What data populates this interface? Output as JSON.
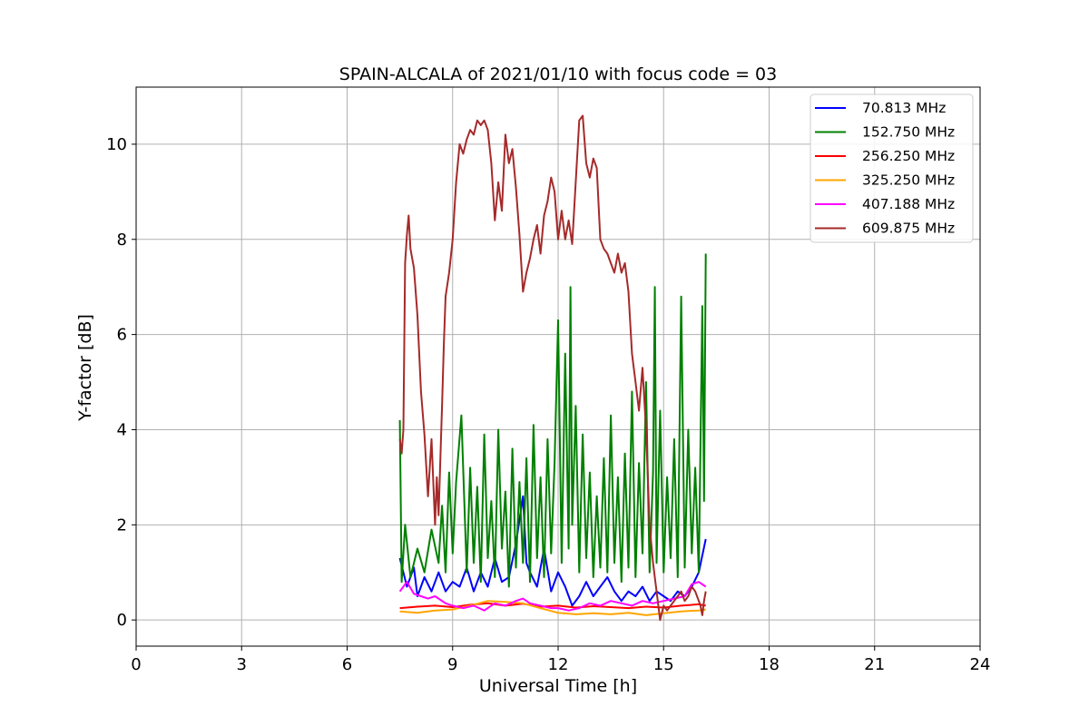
{
  "chart_data": {
    "type": "line",
    "title": "SPAIN-ALCALA of 2021/01/10 with focus code = 03",
    "xlabel": "Universal Time [h]",
    "ylabel": "Y-factor [dB]",
    "xlim": [
      0,
      24
    ],
    "ylim": [
      -0.55,
      11.2
    ],
    "xticks": [
      0,
      3,
      6,
      9,
      12,
      15,
      18,
      21,
      24
    ],
    "yticks": [
      0,
      2,
      4,
      6,
      8,
      10
    ],
    "grid": true,
    "legend_position": "top-right",
    "series": [
      {
        "name": " 70.813 MHz",
        "color": "#0000ff",
        "x": [
          7.5,
          7.7,
          7.9,
          8.0,
          8.2,
          8.4,
          8.6,
          8.8,
          9.0,
          9.2,
          9.4,
          9.6,
          9.8,
          10.0,
          10.2,
          10.4,
          10.6,
          10.8,
          11.0,
          11.1,
          11.2,
          11.4,
          11.6,
          11.8,
          12.0,
          12.2,
          12.4,
          12.6,
          12.8,
          13.0,
          13.2,
          13.4,
          13.6,
          13.8,
          14.0,
          14.2,
          14.4,
          14.6,
          14.8,
          15.0,
          15.2,
          15.4,
          15.6,
          15.8,
          16.0,
          16.2
        ],
        "y": [
          1.3,
          0.7,
          1.1,
          0.5,
          0.9,
          0.6,
          1.0,
          0.6,
          0.8,
          0.7,
          1.1,
          0.6,
          1.0,
          0.7,
          1.3,
          0.8,
          0.9,
          1.6,
          2.6,
          1.2,
          1.0,
          0.7,
          1.5,
          0.6,
          1.0,
          0.7,
          0.3,
          0.5,
          0.8,
          0.5,
          0.7,
          0.9,
          0.6,
          0.4,
          0.6,
          0.5,
          0.7,
          0.4,
          0.6,
          0.5,
          0.4,
          0.6,
          0.5,
          0.7,
          1.0,
          1.7
        ]
      },
      {
        "name": "152.750 MHz",
        "color": "#008000",
        "x": [
          7.5,
          7.55,
          7.65,
          7.8,
          8.0,
          8.2,
          8.4,
          8.6,
          8.7,
          8.8,
          8.9,
          9.0,
          9.1,
          9.25,
          9.4,
          9.5,
          9.6,
          9.7,
          9.8,
          9.9,
          10.0,
          10.1,
          10.2,
          10.3,
          10.4,
          10.5,
          10.6,
          10.7,
          10.8,
          10.9,
          11.0,
          11.1,
          11.2,
          11.3,
          11.4,
          11.5,
          11.6,
          11.7,
          11.8,
          11.9,
          12.0,
          12.1,
          12.2,
          12.3,
          12.35,
          12.4,
          12.5,
          12.6,
          12.7,
          12.8,
          12.9,
          13.0,
          13.1,
          13.2,
          13.3,
          13.4,
          13.5,
          13.6,
          13.7,
          13.8,
          13.9,
          14.0,
          14.1,
          14.2,
          14.3,
          14.4,
          14.5,
          14.6,
          14.7,
          14.75,
          14.8,
          14.9,
          15.0,
          15.1,
          15.2,
          15.3,
          15.4,
          15.5,
          15.6,
          15.7,
          15.8,
          15.9,
          16.0,
          16.1,
          16.15,
          16.2
        ],
        "y": [
          4.2,
          0.8,
          2.0,
          0.9,
          1.5,
          1.0,
          1.9,
          1.2,
          2.4,
          1.0,
          3.1,
          1.4,
          2.9,
          4.3,
          1.0,
          3.2,
          1.2,
          2.8,
          0.8,
          3.9,
          1.3,
          2.5,
          0.9,
          4.0,
          1.5,
          2.7,
          0.7,
          3.6,
          1.1,
          2.9,
          1.2,
          3.4,
          0.8,
          4.1,
          1.3,
          3.0,
          0.9,
          3.8,
          1.4,
          3.3,
          6.3,
          1.2,
          5.6,
          1.5,
          7.0,
          2.0,
          4.5,
          1.0,
          3.9,
          1.3,
          3.1,
          0.9,
          2.6,
          1.1,
          3.4,
          1.0,
          4.3,
          1.2,
          3.0,
          0.8,
          3.5,
          1.1,
          4.8,
          0.9,
          3.3,
          1.4,
          5.0,
          1.0,
          3.1,
          7.0,
          1.2,
          4.4,
          1.0,
          3.0,
          1.3,
          3.8,
          0.9,
          6.8,
          1.1,
          4.0,
          1.4,
          3.2,
          1.0,
          6.6,
          2.5,
          7.7
        ]
      },
      {
        "name": "256.250 MHz",
        "color": "#ff0000",
        "x": [
          7.5,
          8.0,
          8.5,
          9.0,
          9.5,
          10.0,
          10.5,
          11.0,
          11.5,
          12.0,
          12.5,
          13.0,
          13.5,
          14.0,
          14.5,
          15.0,
          15.5,
          16.0,
          16.2
        ],
        "y": [
          0.25,
          0.28,
          0.3,
          0.27,
          0.32,
          0.35,
          0.3,
          0.34,
          0.28,
          0.3,
          0.26,
          0.29,
          0.27,
          0.25,
          0.28,
          0.26,
          0.3,
          0.33,
          0.3
        ]
      },
      {
        "name": "325.250 MHz",
        "color": "#ffa500",
        "x": [
          7.5,
          8.0,
          8.5,
          9.0,
          9.5,
          10.0,
          10.5,
          11.0,
          11.5,
          12.0,
          12.5,
          13.0,
          13.5,
          14.0,
          14.5,
          15.0,
          15.5,
          16.0,
          16.2
        ],
        "y": [
          0.18,
          0.15,
          0.2,
          0.22,
          0.3,
          0.4,
          0.38,
          0.35,
          0.25,
          0.15,
          0.12,
          0.14,
          0.12,
          0.15,
          0.1,
          0.14,
          0.18,
          0.2,
          0.22
        ]
      },
      {
        "name": "407.188 MHz",
        "color": "#ff00ff",
        "x": [
          7.5,
          7.7,
          7.9,
          8.1,
          8.3,
          8.5,
          8.8,
          9.0,
          9.3,
          9.6,
          9.9,
          10.2,
          10.5,
          10.8,
          11.0,
          11.2,
          11.5,
          11.8,
          12.0,
          12.3,
          12.6,
          12.9,
          13.2,
          13.5,
          13.8,
          14.1,
          14.4,
          14.7,
          15.0,
          15.3,
          15.6,
          15.8,
          16.0,
          16.2
        ],
        "y": [
          0.6,
          0.8,
          0.55,
          0.5,
          0.45,
          0.5,
          0.35,
          0.3,
          0.25,
          0.3,
          0.2,
          0.35,
          0.3,
          0.4,
          0.45,
          0.35,
          0.3,
          0.25,
          0.25,
          0.2,
          0.25,
          0.35,
          0.3,
          0.4,
          0.35,
          0.3,
          0.4,
          0.35,
          0.4,
          0.45,
          0.5,
          0.75,
          0.8,
          0.7
        ]
      },
      {
        "name": "609.875 MHz",
        "color": "#a52a2a",
        "x": [
          7.5,
          7.55,
          7.6,
          7.65,
          7.7,
          7.75,
          7.8,
          7.9,
          8.0,
          8.1,
          8.2,
          8.3,
          8.4,
          8.5,
          8.55,
          8.6,
          8.7,
          8.75,
          8.8,
          8.9,
          9.0,
          9.1,
          9.2,
          9.3,
          9.4,
          9.5,
          9.6,
          9.7,
          9.8,
          9.9,
          10.0,
          10.1,
          10.2,
          10.3,
          10.4,
          10.5,
          10.6,
          10.7,
          10.8,
          10.9,
          11.0,
          11.1,
          11.2,
          11.3,
          11.4,
          11.5,
          11.6,
          11.7,
          11.8,
          11.9,
          12.0,
          12.1,
          12.2,
          12.3,
          12.4,
          12.5,
          12.6,
          12.7,
          12.8,
          12.9,
          13.0,
          13.1,
          13.2,
          13.3,
          13.4,
          13.5,
          13.6,
          13.7,
          13.8,
          13.9,
          14.0,
          14.1,
          14.2,
          14.3,
          14.4,
          14.5,
          14.6,
          14.7,
          14.8,
          14.9,
          15.0,
          15.1,
          15.2,
          15.3,
          15.4,
          15.5,
          15.6,
          15.7,
          15.8,
          15.9,
          16.0,
          16.05,
          16.1,
          16.15,
          16.2
        ],
        "y": [
          3.8,
          3.5,
          4.0,
          7.5,
          8.1,
          8.5,
          7.8,
          7.4,
          6.4,
          4.8,
          3.9,
          2.6,
          3.8,
          2.0,
          3.0,
          2.2,
          4.5,
          5.8,
          6.8,
          7.3,
          8.0,
          9.2,
          10.0,
          9.8,
          10.1,
          10.3,
          10.2,
          10.5,
          10.4,
          10.5,
          10.3,
          9.6,
          8.4,
          9.2,
          8.6,
          10.2,
          9.6,
          9.9,
          9.1,
          8.1,
          6.9,
          7.3,
          7.6,
          8.0,
          8.3,
          7.7,
          8.5,
          8.8,
          9.3,
          9.0,
          8.0,
          8.6,
          8.0,
          8.4,
          7.9,
          9.2,
          10.5,
          10.6,
          9.6,
          9.3,
          9.7,
          9.5,
          8.0,
          7.8,
          7.7,
          7.5,
          7.3,
          7.7,
          7.3,
          7.5,
          6.9,
          5.6,
          5.0,
          4.4,
          5.3,
          4.0,
          2.0,
          1.2,
          0.6,
          0.0,
          0.3,
          0.2,
          0.3,
          0.4,
          0.5,
          0.6,
          0.4,
          0.5,
          0.7,
          0.6,
          0.4,
          0.3,
          0.1,
          0.4,
          0.6
        ]
      }
    ]
  }
}
